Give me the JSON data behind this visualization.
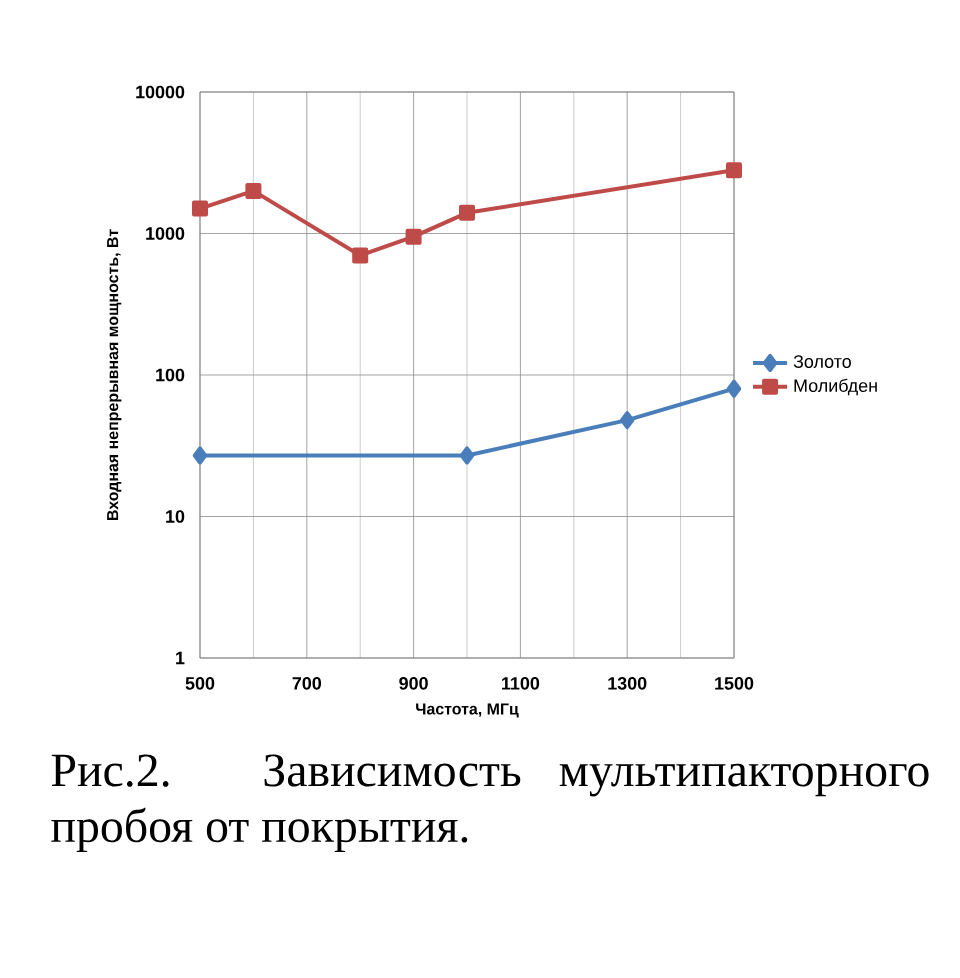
{
  "chart_data": {
    "type": "line",
    "xlabel": "Частота, МГц",
    "ylabel": "Входная непрерывная  мощность, Вт",
    "x": [
      500,
      1000,
      1300,
      1500
    ],
    "series": [
      {
        "name": "Золото",
        "color": "#4a7ebb",
        "marker": "diamond",
        "values": [
          27,
          27,
          48,
          80
        ]
      },
      {
        "name": "Молибден",
        "color": "#be4b48",
        "marker": "square",
        "x": [
          500,
          600,
          800,
          900,
          1000,
          1500
        ],
        "values": [
          1500,
          2000,
          700,
          950,
          1400,
          2800
        ]
      }
    ],
    "xlim": [
      500,
      1500
    ],
    "xticks": [
      500,
      700,
      900,
      1100,
      1300,
      1500
    ],
    "ylim": [
      1,
      10000
    ],
    "yticks": [
      1,
      10,
      100,
      1000,
      10000
    ],
    "log": "y",
    "grid": true,
    "legend": "right",
    "annotations": [
      "Рис.2. Зависимость мультипакторного пробоя от покрытия."
    ]
  }
}
